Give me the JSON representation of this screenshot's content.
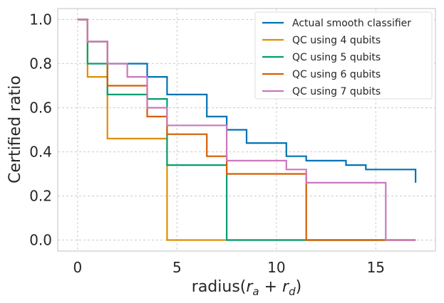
{
  "chart_data": {
    "type": "line",
    "step": "post",
    "title": "",
    "xlabel": "radius(r_a + r_d)",
    "xlabel_parts": {
      "prefix": "radius(",
      "r": "r",
      "sub_a": "a",
      "plus": " + ",
      "sub_d": "d",
      "suffix": ")"
    },
    "ylabel": "Certified ratio",
    "xlim": [
      -1,
      18
    ],
    "ylim": [
      -0.05,
      1.05
    ],
    "xticks": [
      0,
      5,
      10,
      15
    ],
    "xtick_labels": [
      "0",
      "5",
      "10",
      "15"
    ],
    "yticks": [
      0.0,
      0.2,
      0.4,
      0.6,
      0.8,
      1.0
    ],
    "ytick_labels": [
      "0.0",
      "0.2",
      "0.4",
      "0.6",
      "0.8",
      "1.0"
    ],
    "grid": true,
    "legend_position": "top-right",
    "series": [
      {
        "name": "Actual smooth classifier",
        "color": "#0173b2",
        "x": [
          0,
          0.5,
          1.5,
          3.5,
          4.5,
          6.5,
          7.5,
          8.5,
          10.5,
          11.5,
          13.5,
          14.5,
          17
        ],
        "y": [
          1.0,
          0.9,
          0.8,
          0.74,
          0.66,
          0.56,
          0.5,
          0.44,
          0.38,
          0.36,
          0.34,
          0.32,
          0.26
        ]
      },
      {
        "name": "QC using 4 qubits",
        "color": "#de8f05",
        "x": [
          0,
          0.5,
          1.5,
          4.5,
          17
        ],
        "y": [
          1.0,
          0.74,
          0.46,
          0.0,
          0.0
        ]
      },
      {
        "name": "QC using 5 qubits",
        "color": "#029e73",
        "x": [
          0,
          0.5,
          1.5,
          3.5,
          4.5,
          7.5,
          17
        ],
        "y": [
          1.0,
          0.8,
          0.66,
          0.64,
          0.34,
          0.0,
          0.0
        ]
      },
      {
        "name": "QC using 6 qubits",
        "color": "#d55e00",
        "x": [
          0,
          0.5,
          1.5,
          3.5,
          4.5,
          6.5,
          7.5,
          11.5,
          17
        ],
        "y": [
          1.0,
          0.9,
          0.7,
          0.56,
          0.48,
          0.38,
          0.3,
          0.0,
          0.0
        ]
      },
      {
        "name": "QC using 7 qubits",
        "color": "#cc78bc",
        "x": [
          0,
          0.5,
          1.5,
          2.5,
          3.5,
          4.5,
          7.5,
          10.5,
          11.5,
          15.5,
          17
        ],
        "y": [
          1.0,
          0.9,
          0.8,
          0.74,
          0.6,
          0.52,
          0.36,
          0.32,
          0.26,
          0.0,
          0.0
        ]
      }
    ]
  }
}
